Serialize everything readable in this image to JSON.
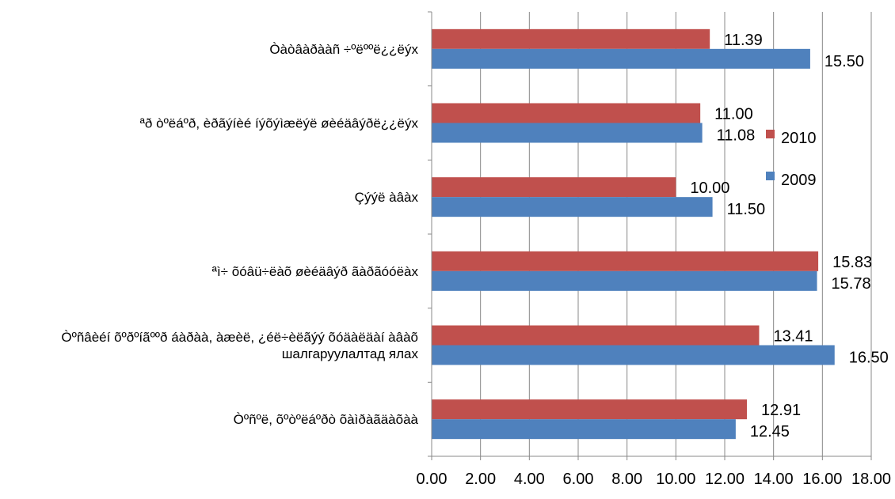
{
  "chart_data": {
    "type": "bar",
    "orientation": "horizontal",
    "categories": [
      "Òàòâàðààñ ÷ºëººë¿¿ëýx",
      "ªð òºëáºð, èðãýíèé íýõýìæëýë øèéäâýðë¿¿ëýx",
      "Çýýë àâàx",
      "ªì÷ õóâü÷ëàõ øèéäâýð ãàðãóóëàx",
      "Òºñâèéí õºðºíãººð áàðàà, àæèë, ¿éë÷èëãýý õóäàëäàí àâàõ шалгаруулалтад ялах",
      "Òºñºë, õºòºëáºðò õàìðàãäàõàà"
    ],
    "series": [
      {
        "name": "2010",
        "color": "#C0504D",
        "values": [
          11.39,
          11.0,
          10.0,
          15.83,
          13.41,
          12.91
        ],
        "labels": [
          "11.39",
          "11.00",
          "10.00",
          "15.83",
          "13.41",
          "12.91"
        ]
      },
      {
        "name": "2009",
        "color": "#4F81BD",
        "values": [
          15.5,
          11.08,
          11.5,
          15.78,
          16.5,
          12.45
        ],
        "labels": [
          "15.50",
          "11.08",
          "11.50",
          "15.78",
          "16.50",
          "12.45"
        ]
      }
    ],
    "xlim": [
      0,
      18
    ],
    "x_ticks": [
      "0.00",
      "2.00",
      "4.00",
      "6.00",
      "8.00",
      "10.00",
      "12.00",
      "14.00",
      "16.00",
      "18.00"
    ],
    "grid": "vertical",
    "legend": "right",
    "legend_order": [
      "2010",
      "2009"
    ]
  }
}
